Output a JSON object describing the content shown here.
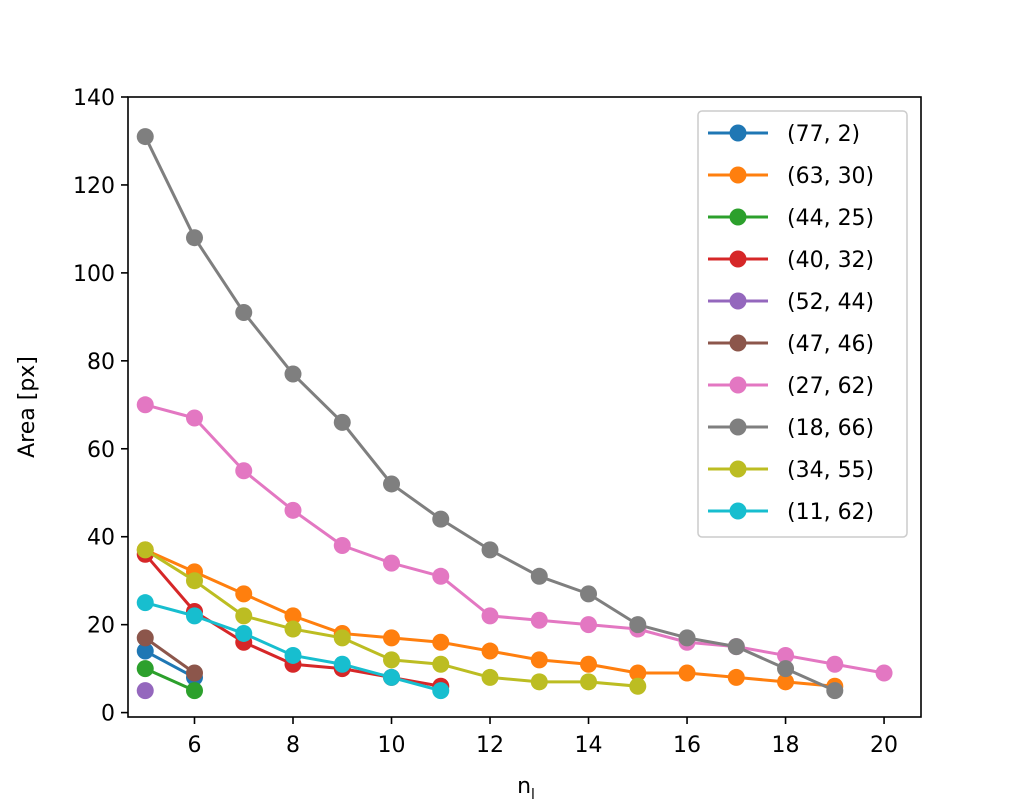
{
  "chart_data": {
    "type": "line",
    "title": "",
    "xlabel": "n",
    "xlabel_subscript": "l",
    "ylabel": "Area [px]",
    "xlim": [
      4.65,
      20.75
    ],
    "ylim": [
      -1,
      140
    ],
    "xticks": [
      6,
      8,
      10,
      12,
      14,
      16,
      18,
      20
    ],
    "yticks": [
      0,
      20,
      40,
      60,
      80,
      100,
      120,
      140
    ],
    "grid": false,
    "legend_position": "top-right",
    "series": [
      {
        "name": "(77, 2)",
        "color": "#1f77b4",
        "x": [
          5,
          6
        ],
        "y": [
          14,
          8
        ]
      },
      {
        "name": "(63, 30)",
        "color": "#ff7f0e",
        "x": [
          5,
          6,
          7,
          8,
          9,
          10,
          11,
          12,
          13,
          14,
          15,
          16,
          17,
          18,
          19
        ],
        "y": [
          37,
          32,
          27,
          22,
          18,
          17,
          16,
          14,
          12,
          11,
          9,
          9,
          8,
          7,
          6
        ]
      },
      {
        "name": "(44, 25)",
        "color": "#2ca02c",
        "x": [
          5,
          6
        ],
        "y": [
          10,
          5
        ]
      },
      {
        "name": "(40, 32)",
        "color": "#d62728",
        "x": [
          5,
          6,
          7,
          8,
          9,
          10,
          11
        ],
        "y": [
          36,
          23,
          16,
          11,
          10,
          8,
          6
        ]
      },
      {
        "name": "(52, 44)",
        "color": "#9467bd",
        "x": [
          5
        ],
        "y": [
          5
        ]
      },
      {
        "name": "(47, 46)",
        "color": "#8c564b",
        "x": [
          5,
          6
        ],
        "y": [
          17,
          9
        ]
      },
      {
        "name": "(27, 62)",
        "color": "#e377c2",
        "x": [
          5,
          6,
          7,
          8,
          9,
          10,
          11,
          12,
          13,
          14,
          15,
          16,
          17,
          18,
          19,
          20
        ],
        "y": [
          70,
          67,
          55,
          46,
          38,
          34,
          31,
          22,
          21,
          20,
          19,
          16,
          15,
          13,
          11,
          9
        ]
      },
      {
        "name": "(18, 66)",
        "color": "#7f7f7f",
        "x": [
          5,
          6,
          7,
          8,
          9,
          10,
          11,
          12,
          13,
          14,
          15,
          16,
          17,
          18,
          19
        ],
        "y": [
          131,
          108,
          91,
          77,
          66,
          52,
          44,
          37,
          31,
          27,
          20,
          17,
          15,
          10,
          5
        ]
      },
      {
        "name": "(34, 55)",
        "color": "#bcbd22",
        "x": [
          5,
          6,
          7,
          8,
          9,
          10,
          11,
          12,
          13,
          14,
          15
        ],
        "y": [
          37,
          30,
          22,
          19,
          17,
          12,
          11,
          8,
          7,
          7,
          6
        ]
      },
      {
        "name": "(11, 62)",
        "color": "#17becf",
        "x": [
          5,
          6,
          7,
          8,
          9,
          10,
          11
        ],
        "y": [
          25,
          22,
          18,
          13,
          11,
          8,
          5
        ]
      }
    ]
  }
}
